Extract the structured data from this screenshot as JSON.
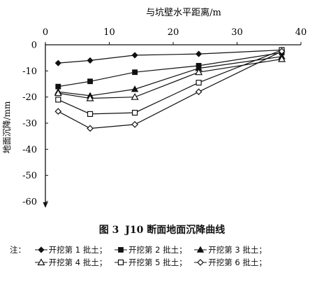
{
  "chart_data": {
    "type": "line",
    "xlabel": "与坑壁水平距离/m",
    "ylabel": "地面沉降/mm",
    "xlim": [
      0,
      40
    ],
    "ylim": [
      -60,
      0
    ],
    "x_ticks": [
      "0",
      "10",
      "20",
      "30",
      "40"
    ],
    "y_ticks": [
      "0",
      "-10",
      "-20",
      "-30",
      "-40",
      "-50",
      "-60"
    ],
    "grid": false,
    "series": [
      {
        "name": "开挖第 1 批土",
        "marker": "diamond-filled",
        "x": [
          2,
          7,
          14,
          24,
          37
        ],
        "y": [
          -7,
          -6,
          -4,
          -3.5,
          -2
        ]
      },
      {
        "name": "开挖第 2 批土",
        "marker": "square-filled",
        "x": [
          2,
          7,
          14,
          24,
          37
        ],
        "y": [
          -16,
          -14,
          -10.5,
          -8,
          -3
        ]
      },
      {
        "name": "开挖第 3 批土",
        "marker": "triangle-filled",
        "x": [
          2,
          7,
          14,
          24,
          37
        ],
        "y": [
          -18,
          -19.5,
          -17,
          -9,
          -4.5
        ]
      },
      {
        "name": "开挖第 4 批土",
        "marker": "triangle-open",
        "x": [
          2,
          7,
          14,
          24,
          37
        ],
        "y": [
          -18.5,
          -20.5,
          -20,
          -10.5,
          -5.5
        ]
      },
      {
        "name": "开挖第 5 批土",
        "marker": "square-open",
        "x": [
          2,
          7,
          14,
          24,
          37
        ],
        "y": [
          -21,
          -26.5,
          -26,
          -14.5,
          -2
        ]
      },
      {
        "name": "开挖第 6 批土",
        "marker": "diamond-open",
        "x": [
          2,
          7,
          14,
          24,
          37
        ],
        "y": [
          -25.5,
          -32,
          -30.5,
          -18,
          -2.5
        ]
      }
    ]
  },
  "caption": {
    "figure_no": "图 3",
    "title": "J10 断面地面沉降曲线"
  },
  "notes": {
    "prefix": "注：",
    "items": [
      "开挖第 1 批土；",
      "开挖第 2 批土；",
      "开挖第 3 批土；",
      "开挖第 4 批土；",
      "开挖第 5 批土；",
      "开挖第 6 批土；"
    ]
  }
}
